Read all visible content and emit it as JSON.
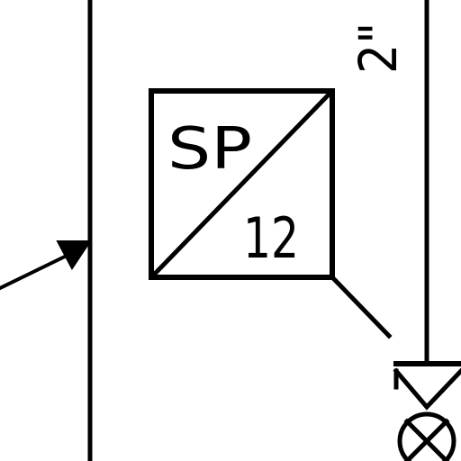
{
  "diagram": {
    "instrument": {
      "tag_letters": "SP",
      "tag_number": "12"
    },
    "pipe_size_label": "2\"",
    "colors": {
      "line": "#000000",
      "background": "#ffffff"
    }
  }
}
